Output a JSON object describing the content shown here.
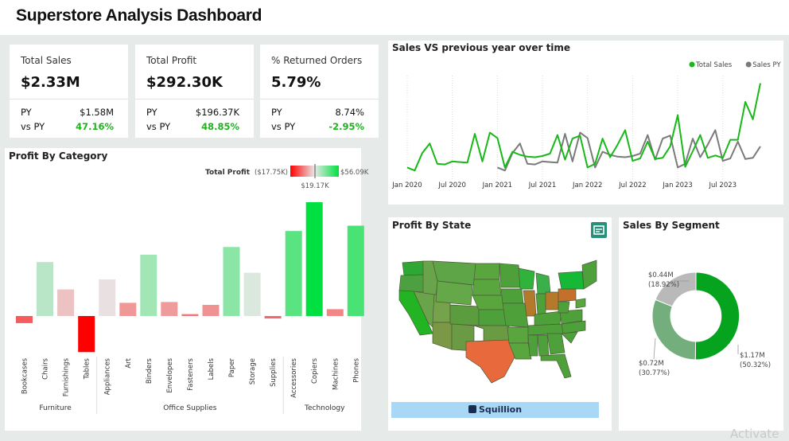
{
  "header": {
    "title": "Superstore Analysis Dashboard"
  },
  "kpis": [
    {
      "label": "Total Sales",
      "value": "$2.33M",
      "py_label": "PY",
      "py_value": "$1.58M",
      "vs_label": "vs PY",
      "vs_value": "47.16%"
    },
    {
      "label": "Total Profit",
      "value": "$292.30K",
      "py_label": "PY",
      "py_value": "$196.37K",
      "vs_label": "vs PY",
      "vs_value": "48.85%"
    },
    {
      "label": "% Returned Orders",
      "value": "5.79%",
      "py_label": "PY",
      "py_value": "8.74%",
      "vs_label": "vs PY",
      "vs_value": "-2.95%"
    }
  ],
  "line_chart": {
    "title": "Sales VS previous year over time"
  },
  "category_chart": {
    "title": "Profit By Category",
    "legend_title": "Total Profit",
    "legend_min": "($17.75K)",
    "legend_max": "$56.09K",
    "legend_mid": "$19.17K"
  },
  "map": {
    "title": "Profit By State",
    "banner": "Squillion"
  },
  "segment_chart": {
    "title": "Sales By Segment"
  },
  "watermark": "Activate",
  "colors": {
    "positive": "#1db31d",
    "accent": "#00b000",
    "negative": "#ff0000"
  },
  "chart_data": [
    {
      "type": "line",
      "x": [
        "2020-01",
        "2020-02",
        "2020-03",
        "2020-04",
        "2020-05",
        "2020-06",
        "2020-07",
        "2020-08",
        "2020-09",
        "2020-10",
        "2020-11",
        "2020-12",
        "2021-01",
        "2021-02",
        "2021-03",
        "2021-04",
        "2021-05",
        "2021-06",
        "2021-07",
        "2021-08",
        "2021-09",
        "2021-10",
        "2021-11",
        "2021-12",
        "2022-01",
        "2022-02",
        "2022-03",
        "2022-04",
        "2022-05",
        "2022-06",
        "2022-07",
        "2022-08",
        "2022-09",
        "2022-10",
        "2022-11",
        "2022-12",
        "2023-01",
        "2023-02",
        "2023-03",
        "2023-04",
        "2023-05",
        "2023-06",
        "2023-07",
        "2023-08",
        "2023-09",
        "2023-10",
        "2023-11",
        "2023-12"
      ],
      "xticks": [
        "Jan 2020",
        "Jul 2020",
        "Jan 2021",
        "Jul 2021",
        "Jan 2022",
        "Jul 2022",
        "Jan 2023",
        "Jul 2023"
      ],
      "series": [
        {
          "name": "Total Sales",
          "color": "#17b817",
          "values": [
            22,
            17,
            46,
            62,
            28,
            27,
            32,
            31,
            30,
            78,
            32,
            80,
            71,
            22,
            48,
            43,
            40,
            39,
            41,
            45,
            76,
            35,
            70,
            75,
            22,
            28,
            70,
            39,
            60,
            84,
            33,
            37,
            65,
            36,
            38,
            57,
            109,
            23,
            49,
            76,
            38,
            42,
            38,
            68,
            68,
            131,
            102,
            162
          ]
        },
        {
          "name": "Sales PY",
          "color": "#7a7a7a",
          "values": [
            null,
            null,
            null,
            null,
            null,
            null,
            null,
            null,
            null,
            null,
            null,
            null,
            22,
            17,
            46,
            62,
            28,
            27,
            32,
            31,
            30,
            78,
            32,
            80,
            71,
            22,
            48,
            43,
            40,
            39,
            41,
            45,
            76,
            35,
            70,
            75,
            22,
            28,
            70,
            39,
            60,
            84,
            33,
            37,
            65,
            36,
            38,
            57
          ]
        }
      ],
      "legend": "top-right",
      "grid": true
    },
    {
      "type": "bar",
      "groups": [
        "Furniture",
        "Office Supplies",
        "Technology"
      ],
      "categories": [
        "Bookcases",
        "Chairs",
        "Furnishings",
        "Tables",
        "Appliances",
        "Art",
        "Binders",
        "Envelopes",
        "Fasteners",
        "Labels",
        "Paper",
        "Storage",
        "Supplies",
        "Accessories",
        "Copiers",
        "Machines",
        "Phones"
      ],
      "group_index": [
        0,
        0,
        0,
        0,
        1,
        1,
        1,
        1,
        1,
        1,
        1,
        1,
        1,
        2,
        2,
        2,
        2
      ],
      "values": [
        -3.5,
        26.6,
        13.1,
        -17.75,
        18.1,
        6.5,
        30.2,
        6.9,
        0.95,
        5.5,
        34.0,
        21.3,
        -1.2,
        41.9,
        56.09,
        3.38,
        44.5
      ],
      "unit": "$K",
      "color_scale": {
        "min": -17.75,
        "mid": 19.17,
        "max": 56.09,
        "min_color": "#ff0000",
        "mid_color": "#e8e8e8",
        "max_color": "#00e040"
      }
    },
    {
      "type": "pie",
      "labels": [
        "$1.17M",
        "$0.72M",
        "$0.44M"
      ],
      "values": [
        1.17,
        0.72,
        0.44
      ],
      "percent_labels": [
        "(50.32%)",
        "(30.77%)",
        "(18.92%)"
      ],
      "colors": [
        "#06a31f",
        "#73ae7c",
        "#b9b9b9"
      ],
      "donut": true
    }
  ]
}
